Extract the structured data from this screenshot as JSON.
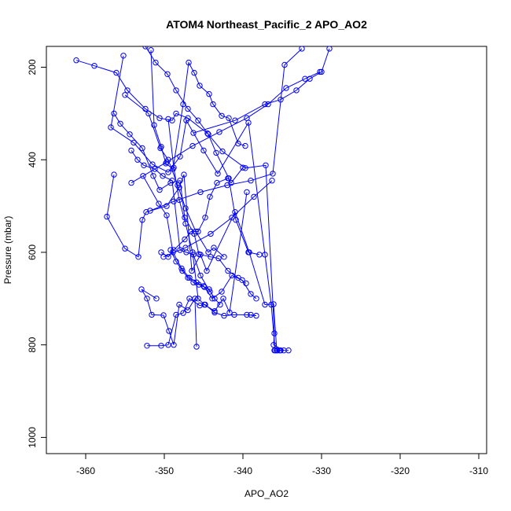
{
  "chart_data": {
    "type": "line",
    "title": "ATOM4 Northeast_Pacific_2 APO_AO2",
    "xlabel": "APO_AO2",
    "ylabel": "Pressure (mbar)",
    "xlim": [
      -365,
      -309
    ],
    "ylim": [
      1035,
      155
    ],
    "y_reversed": true,
    "grid": false,
    "legend": "none",
    "marker": "open-circle",
    "x_ticks": [
      -360,
      -350,
      -340,
      -330,
      -320,
      -310
    ],
    "y_ticks": [
      200,
      400,
      600,
      800,
      1000
    ],
    "colors": {
      "series": "#0000ff",
      "axis": "#000000",
      "background": "#ffffff"
    },
    "series": [
      {
        "x": [
          -361.2,
          -358.9,
          -356.1,
          -354.7,
          -352.4,
          -350.6,
          -349.0,
          -348.5,
          -347.0,
          -344.5,
          -342.6,
          -339.7,
          -337.1,
          -336.0,
          -336.1,
          -334.8,
          -335.6,
          -335.3,
          -334.2,
          -335.2,
          -336.0
        ],
        "y": [
          185,
          197,
          212,
          250,
          290,
          310,
          315,
          300,
          310,
          343,
          382,
          418,
          412,
          775,
          800,
          812,
          812,
          812,
          812,
          812,
          812
        ]
      },
      {
        "x": [
          -355.2,
          -356.8,
          -353.9,
          -351.5,
          -349.5,
          -348.0,
          -347.2,
          -345.0,
          -343.2,
          -339.3,
          -337.2,
          -336.4,
          -335.9
        ],
        "y": [
          175,
          330,
          363,
          410,
          427,
          393,
          315,
          380,
          430,
          320,
          605,
          713,
          812
        ]
      },
      {
        "x": [
          -356.4,
          -357.3,
          -355.0,
          -353.3,
          -352.8,
          -352.3,
          -349.7,
          -348.1,
          -347.5,
          -346.5,
          -345.4,
          -344.6,
          -341.0,
          -339.2,
          -337.2,
          -336.1,
          -335.7
        ],
        "y": [
          432,
          523,
          592,
          610,
          530,
          513,
          500,
          460,
          432,
          640,
          605,
          640,
          513,
          600,
          713,
          712,
          812
        ]
      },
      {
        "x": [
          -352.2,
          -350.4,
          -349.5,
          -348.5,
          -347.6,
          -346.8,
          -345.5,
          -344.8,
          -343.6,
          -342.4,
          -341.1,
          -339.5,
          -338.3,
          -339.0
        ],
        "y": [
          802,
          802,
          800,
          735,
          731,
          700,
          715,
          713,
          730,
          737,
          735,
          735,
          737,
          735
        ]
      },
      {
        "x": [
          -351.0,
          -352.9,
          -352.2,
          -351.6,
          -350.1,
          -349.4,
          -348.8,
          -348.1,
          -347.0,
          -346.1,
          -345.9
        ],
        "y": [
          700,
          680,
          700,
          735,
          736,
          770,
          800,
          713,
          725,
          700,
          804
        ]
      },
      {
        "x": [
          -352.7,
          -350.7,
          -349.7,
          -348.9,
          -347.8,
          -346.8,
          -345.9,
          -345.0,
          -343.9,
          -342.7,
          -341.4,
          -340.1,
          -339.0,
          -338.3
        ],
        "y": [
          435,
          495,
          520,
          600,
          635,
          655,
          665,
          673,
          700,
          685,
          650,
          660,
          690,
          700
        ]
      },
      {
        "x": [
          -350.4,
          -349.5,
          -348.8,
          -347.4,
          -346.6,
          -345.7,
          -344.8,
          -344.2,
          -343.3,
          -341.9,
          -341.5,
          -340.0
        ],
        "y": [
          600,
          610,
          595,
          572,
          555,
          555,
          525,
          480,
          450,
          440,
          450,
          417
        ]
      },
      {
        "x": [
          -349.5,
          -348.8,
          -348.1,
          -347.3,
          -346.4,
          -345.7,
          -344.9,
          -343.6,
          -342.5,
          -341.7,
          -339.5
        ],
        "y": [
          312,
          417,
          487,
          538,
          600,
          700,
          713,
          727,
          700,
          730,
          470
        ]
      },
      {
        "x": [
          -351.7,
          -351.3,
          -350.4,
          -349.8,
          -348.9,
          -347.6,
          -346.9,
          -346.2,
          -345.5,
          -344.3,
          -343.8,
          -342.7,
          -341.8,
          -340.6,
          -339.7
        ],
        "y": [
          163,
          325,
          372,
          408,
          420,
          280,
          190,
          212,
          240,
          258,
          280,
          305,
          310,
          365,
          370
        ]
      },
      {
        "x": [
          -356.4,
          -355.6,
          -354.4,
          -352.8,
          -351.4,
          -350.6,
          -349.2,
          -348.0,
          -347.4,
          -346.2,
          -345.6,
          -344.1,
          -343.1,
          -341.9,
          -340.6,
          -339.6
        ],
        "y": [
          300,
          322,
          345,
          375,
          435,
          465,
          450,
          445,
          525,
          560,
          604,
          610,
          613,
          640,
          655,
          667
        ]
      },
      {
        "x": [
          -354.2,
          -353.4,
          -352.6,
          -351.2,
          -350.2,
          -349.0,
          -348.0,
          -347.2,
          -346.3,
          -345.4,
          -344.2
        ],
        "y": [
          380,
          400,
          412,
          420,
          435,
          445,
          595,
          600,
          605,
          650,
          685
        ]
      },
      {
        "x": [
          -349.2,
          -348.5,
          -347.7,
          -347.0,
          -346.3,
          -345.6,
          -344.9,
          -344.3,
          -343.6,
          -342.9
        ],
        "y": [
          595,
          620,
          640,
          655,
          665,
          670,
          675,
          680,
          700,
          713
        ]
      },
      {
        "x": [
          -355.0,
          -352.0,
          -350.5,
          -349.5,
          -348.3,
          -347.3,
          -346.0,
          -344.4,
          -343.7,
          -342.4
        ],
        "y": [
          260,
          300,
          375,
          400,
          455,
          505,
          555,
          600,
          590,
          610
        ]
      },
      {
        "x": [
          -352.4,
          -351.1,
          -349.6,
          -348.5,
          -347.0,
          -345.7,
          -344.4,
          -343.4,
          -341.8,
          -340.9,
          -339.3,
          -337.9
        ],
        "y": [
          155,
          190,
          215,
          250,
          290,
          315,
          345,
          385,
          440,
          530,
          600,
          605
        ]
      },
      {
        "x": [
          -346.3,
          -341.0,
          -337.2,
          -335.2,
          -333.2,
          -331.5,
          -330.0,
          -329.0
        ],
        "y": [
          342,
          315,
          280,
          270,
          250,
          225,
          210,
          160
        ]
      },
      {
        "x": [
          -354.2,
          -349.7,
          -346.4,
          -343.0,
          -339.5,
          -336.8,
          -334.5,
          -332.1,
          -330.2
        ],
        "y": [
          450,
          405,
          370,
          340,
          310,
          280,
          245,
          225,
          210
        ]
      },
      {
        "x": [
          -351.8,
          -348.8,
          -345.4,
          -342.0,
          -339.0,
          -336.2,
          -334.7,
          -332.5
        ],
        "y": [
          510,
          490,
          470,
          455,
          445,
          430,
          195,
          160
        ]
      },
      {
        "x": [
          -350.1,
          -347.3,
          -344.1,
          -341.4,
          -338.6,
          -336.3
        ],
        "y": [
          610,
          590,
          560,
          525,
          480,
          445
        ]
      }
    ]
  }
}
